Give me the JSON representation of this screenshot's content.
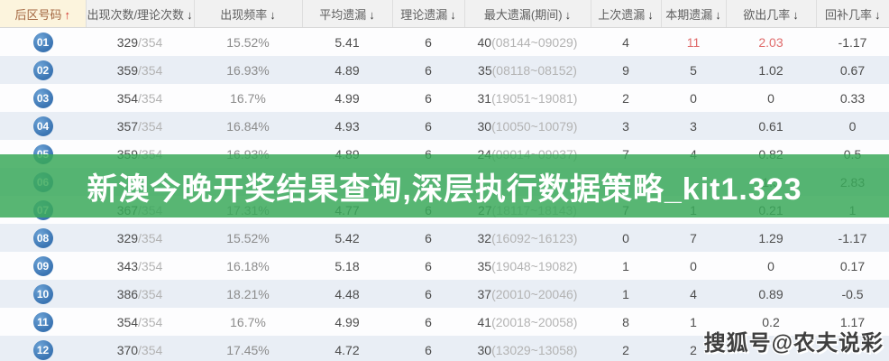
{
  "banner": {
    "text": "新澳今晚开奖结果查询,深层执行数据策略_kit1.323",
    "bg_color": "#3ba95b"
  },
  "watermark": {
    "text": "搜狐号@农夫说彩"
  },
  "accent_colors": {
    "badge_blue": "#3a74b2",
    "alert_red": "#e06c6c",
    "header_first_bg": "#fcf4dd",
    "header_first_text": "#a2653f",
    "even_row_bg": "#e9eef5"
  },
  "table": {
    "columns": [
      {
        "label": "后区号码",
        "sort_icon": "sort-asc-icon",
        "arrow": "↑",
        "dir": "up"
      },
      {
        "label": "出现次数/理论次数",
        "sort_icon": "sort-desc-icon",
        "arrow": "↓",
        "dir": "down"
      },
      {
        "label": "出现频率",
        "sort_icon": "sort-desc-icon",
        "arrow": "↓",
        "dir": "down"
      },
      {
        "label": "平均遗漏",
        "sort_icon": "sort-desc-icon",
        "arrow": "↓",
        "dir": "down"
      },
      {
        "label": "理论遗漏",
        "sort_icon": "sort-desc-icon",
        "arrow": "↓",
        "dir": "down"
      },
      {
        "label": "最大遗漏(期间)",
        "sort_icon": "sort-desc-icon",
        "arrow": "↓",
        "dir": "down"
      },
      {
        "label": "上次遗漏",
        "sort_icon": "sort-desc-icon",
        "arrow": "↓",
        "dir": "down"
      },
      {
        "label": "本期遗漏",
        "sort_icon": "sort-desc-icon",
        "arrow": "↓",
        "dir": "down"
      },
      {
        "label": "欲出几率",
        "sort_icon": "sort-desc-icon",
        "arrow": "↓",
        "dir": "down"
      },
      {
        "label": "回补几率",
        "sort_icon": "sort-desc-icon",
        "arrow": "↓",
        "dir": "down"
      }
    ],
    "rows": [
      {
        "num": "01",
        "count": "329",
        "total": "/354",
        "freq": "15.52%",
        "avg": "5.41",
        "theory": "6",
        "max": "40",
        "period": "(08144~09029)",
        "last": "4",
        "cur": "11",
        "cur_red": true,
        "want": "2.03",
        "want_red": true,
        "back": "-1.17"
      },
      {
        "num": "02",
        "count": "359",
        "total": "/354",
        "freq": "16.93%",
        "avg": "4.89",
        "theory": "6",
        "max": "35",
        "period": "(08118~08152)",
        "last": "9",
        "cur": "5",
        "cur_red": false,
        "want": "1.02",
        "want_red": false,
        "back": "0.67"
      },
      {
        "num": "03",
        "count": "354",
        "total": "/354",
        "freq": "16.7%",
        "avg": "4.99",
        "theory": "6",
        "max": "31",
        "period": "(19051~19081)",
        "last": "2",
        "cur": "0",
        "cur_red": false,
        "want": "0",
        "want_red": false,
        "back": "0.33"
      },
      {
        "num": "04",
        "count": "357",
        "total": "/354",
        "freq": "16.84%",
        "avg": "4.93",
        "theory": "6",
        "max": "30",
        "period": "(10050~10079)",
        "last": "3",
        "cur": "3",
        "cur_red": false,
        "want": "0.61",
        "want_red": false,
        "back": "0"
      },
      {
        "num": "05",
        "count": "359",
        "total": "/354",
        "freq": "16.93%",
        "avg": "4.89",
        "theory": "6",
        "max": "24",
        "period": "(09014~09037)",
        "last": "7",
        "cur": "4",
        "cur_red": false,
        "want": "0.82",
        "want_red": false,
        "back": "0.5"
      },
      {
        "num": "06",
        "count": "33",
        "total": "",
        "freq": "",
        "avg": "",
        "theory": "",
        "max": "",
        "period": "",
        "last": "",
        "cur": "",
        "cur_red": false,
        "want": "1.5",
        "want_red": false,
        "back": "2.83"
      },
      {
        "num": "07",
        "count": "367",
        "total": "/354",
        "freq": "17.31%",
        "avg": "4.77",
        "theory": "6",
        "max": "27",
        "period": "(18117~18143)",
        "last": "7",
        "cur": "1",
        "cur_red": false,
        "want": "0.21",
        "want_red": false,
        "back": "1"
      },
      {
        "num": "08",
        "count": "329",
        "total": "/354",
        "freq": "15.52%",
        "avg": "5.42",
        "theory": "6",
        "max": "32",
        "period": "(16092~16123)",
        "last": "0",
        "cur": "7",
        "cur_red": false,
        "want": "1.29",
        "want_red": false,
        "back": "-1.17"
      },
      {
        "num": "09",
        "count": "343",
        "total": "/354",
        "freq": "16.18%",
        "avg": "5.18",
        "theory": "6",
        "max": "35",
        "period": "(19048~19082)",
        "last": "1",
        "cur": "0",
        "cur_red": false,
        "want": "0",
        "want_red": false,
        "back": "0.17"
      },
      {
        "num": "10",
        "count": "386",
        "total": "/354",
        "freq": "18.21%",
        "avg": "4.48",
        "theory": "6",
        "max": "37",
        "period": "(20010~20046)",
        "last": "1",
        "cur": "4",
        "cur_red": false,
        "want": "0.89",
        "want_red": false,
        "back": "-0.5"
      },
      {
        "num": "11",
        "count": "354",
        "total": "/354",
        "freq": "16.7%",
        "avg": "4.99",
        "theory": "6",
        "max": "41",
        "period": "(20018~20058)",
        "last": "8",
        "cur": "1",
        "cur_red": false,
        "want": "0.2",
        "want_red": false,
        "back": "1.17"
      },
      {
        "num": "12",
        "count": "370",
        "total": "/354",
        "freq": "17.45%",
        "avg": "4.72",
        "theory": "6",
        "max": "30",
        "period": "(13029~13058)",
        "last": "2",
        "cur": "2",
        "cur_red": false,
        "want": "",
        "want_red": false,
        "back": ""
      }
    ]
  }
}
